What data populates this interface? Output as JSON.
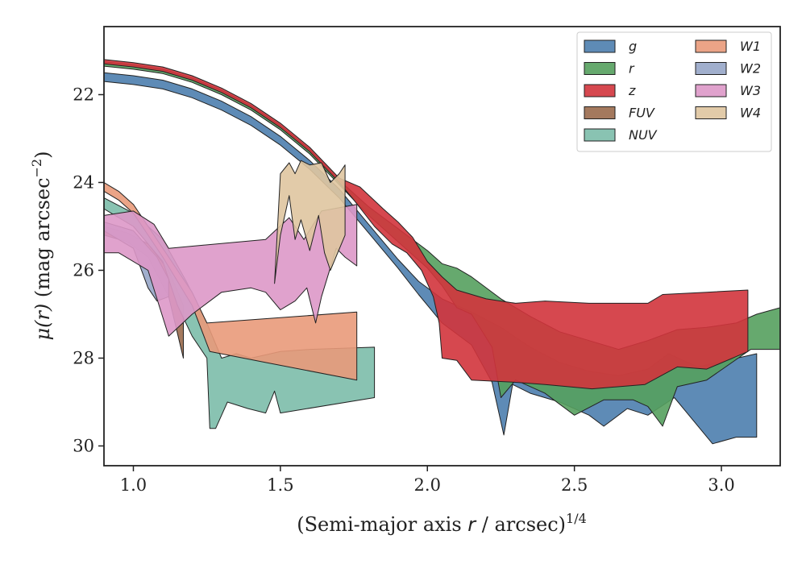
{
  "chart_data": {
    "type": "area",
    "title": "",
    "xlabel": "(Semi-major axis r / arcsec)^{1/4}",
    "xlabel_parts": {
      "prefix": "(Semi-major axis ",
      "var": "r",
      "suffix": " / arcsec)",
      "sup": "1/4"
    },
    "ylabel": "μ(r) (mag arcsec^{−2})",
    "ylabel_parts": {
      "var": "μ(r)",
      "prefix": " (mag arcsec",
      "sup": "−2",
      "suffix": ")"
    },
    "xlim": [
      0.9,
      3.2
    ],
    "ylim": [
      30.45,
      20.45
    ],
    "y_inverted": true,
    "xticks": [
      1.0,
      1.5,
      2.0,
      2.5,
      3.0
    ],
    "xtick_labels": [
      "1.0",
      "1.5",
      "2.0",
      "2.5",
      "3.0"
    ],
    "yticks": [
      22,
      24,
      26,
      28,
      30
    ],
    "ytick_labels": [
      "22",
      "24",
      "26",
      "28",
      "30"
    ],
    "grid": false,
    "legend": {
      "placement": "top-right",
      "columns": 2
    },
    "series": [
      {
        "name": "g",
        "color": "#4c7eae",
        "upper": [
          [
            0.9,
            21.5
          ],
          [
            1.0,
            21.57
          ],
          [
            1.1,
            21.67
          ],
          [
            1.2,
            21.87
          ],
          [
            1.3,
            22.15
          ],
          [
            1.4,
            22.5
          ],
          [
            1.5,
            22.95
          ],
          [
            1.6,
            23.5
          ],
          [
            1.7,
            24.15
          ],
          [
            1.8,
            24.95
          ],
          [
            1.9,
            25.75
          ],
          [
            1.97,
            26.25
          ],
          [
            2.05,
            26.65
          ],
          [
            2.15,
            26.95
          ],
          [
            2.25,
            27.3
          ],
          [
            2.35,
            27.75
          ],
          [
            2.45,
            28.1
          ],
          [
            2.55,
            28.3
          ],
          [
            2.65,
            28.4
          ],
          [
            2.75,
            28.25
          ],
          [
            2.82,
            27.9
          ],
          [
            2.92,
            28.2
          ],
          [
            3.12,
            27.9
          ]
        ],
        "lower": [
          [
            0.9,
            21.7
          ],
          [
            1.0,
            21.77
          ],
          [
            1.1,
            21.87
          ],
          [
            1.2,
            22.07
          ],
          [
            1.3,
            22.35
          ],
          [
            1.4,
            22.7
          ],
          [
            1.5,
            23.15
          ],
          [
            1.6,
            23.7
          ],
          [
            1.7,
            24.35
          ],
          [
            1.8,
            25.15
          ],
          [
            1.9,
            25.95
          ],
          [
            1.97,
            26.55
          ],
          [
            2.05,
            27.2
          ],
          [
            2.15,
            27.7
          ],
          [
            2.22,
            28.55
          ],
          [
            2.26,
            29.75
          ],
          [
            2.29,
            28.6
          ],
          [
            2.35,
            28.8
          ],
          [
            2.45,
            29.0
          ],
          [
            2.55,
            29.3
          ],
          [
            2.6,
            29.55
          ],
          [
            2.68,
            29.15
          ],
          [
            2.75,
            29.3
          ],
          [
            2.84,
            28.9
          ],
          [
            2.97,
            29.95
          ],
          [
            3.05,
            29.8
          ],
          [
            3.12,
            29.8
          ]
        ]
      },
      {
        "name": "r",
        "color": "#55a05e",
        "upper": [
          [
            0.9,
            21.25
          ],
          [
            1.0,
            21.32
          ],
          [
            1.1,
            21.42
          ],
          [
            1.2,
            21.62
          ],
          [
            1.3,
            21.9
          ],
          [
            1.4,
            22.25
          ],
          [
            1.5,
            22.7
          ],
          [
            1.6,
            23.25
          ],
          [
            1.7,
            23.95
          ],
          [
            1.8,
            24.55
          ],
          [
            1.9,
            25.05
          ],
          [
            2.0,
            25.55
          ],
          [
            2.05,
            25.85
          ],
          [
            2.1,
            25.95
          ],
          [
            2.15,
            26.15
          ],
          [
            2.25,
            26.65
          ],
          [
            2.35,
            27.05
          ],
          [
            2.45,
            27.4
          ],
          [
            2.55,
            27.6
          ],
          [
            2.65,
            27.8
          ],
          [
            2.75,
            27.6
          ],
          [
            2.85,
            27.35
          ],
          [
            2.95,
            27.3
          ],
          [
            3.05,
            27.2
          ],
          [
            3.12,
            27.0
          ],
          [
            3.2,
            26.85
          ]
        ],
        "lower": [
          [
            0.9,
            21.35
          ],
          [
            1.0,
            21.42
          ],
          [
            1.1,
            21.52
          ],
          [
            1.2,
            21.72
          ],
          [
            1.3,
            22.0
          ],
          [
            1.4,
            22.35
          ],
          [
            1.5,
            22.8
          ],
          [
            1.6,
            23.35
          ],
          [
            1.7,
            24.05
          ],
          [
            1.8,
            24.75
          ],
          [
            1.9,
            25.35
          ],
          [
            2.0,
            25.95
          ],
          [
            2.05,
            26.35
          ],
          [
            2.1,
            26.85
          ],
          [
            2.15,
            27.0
          ],
          [
            2.22,
            27.75
          ],
          [
            2.25,
            28.9
          ],
          [
            2.3,
            28.5
          ],
          [
            2.4,
            28.8
          ],
          [
            2.45,
            29.05
          ],
          [
            2.5,
            29.3
          ],
          [
            2.6,
            28.95
          ],
          [
            2.7,
            28.95
          ],
          [
            2.75,
            29.1
          ],
          [
            2.8,
            29.55
          ],
          [
            2.85,
            28.65
          ],
          [
            2.95,
            28.5
          ],
          [
            3.1,
            27.8
          ],
          [
            3.2,
            27.8
          ]
        ]
      },
      {
        "name": "z",
        "color": "#d1343c",
        "upper": [
          [
            0.9,
            21.2
          ],
          [
            1.0,
            21.27
          ],
          [
            1.1,
            21.37
          ],
          [
            1.2,
            21.57
          ],
          [
            1.3,
            21.85
          ],
          [
            1.4,
            22.2
          ],
          [
            1.5,
            22.65
          ],
          [
            1.6,
            23.2
          ],
          [
            1.7,
            23.9
          ],
          [
            1.77,
            24.1
          ],
          [
            1.85,
            24.6
          ],
          [
            1.9,
            24.9
          ],
          [
            1.95,
            25.25
          ],
          [
            2.0,
            25.8
          ],
          [
            2.05,
            26.15
          ],
          [
            2.1,
            26.45
          ],
          [
            2.2,
            26.65
          ],
          [
            2.3,
            26.75
          ],
          [
            2.4,
            26.7
          ],
          [
            2.55,
            26.75
          ],
          [
            2.75,
            26.75
          ],
          [
            2.8,
            26.55
          ],
          [
            2.95,
            26.5
          ],
          [
            3.09,
            26.45
          ]
        ],
        "lower": [
          [
            0.9,
            21.3
          ],
          [
            1.0,
            21.37
          ],
          [
            1.1,
            21.47
          ],
          [
            1.2,
            21.67
          ],
          [
            1.3,
            21.95
          ],
          [
            1.4,
            22.3
          ],
          [
            1.5,
            22.75
          ],
          [
            1.6,
            23.3
          ],
          [
            1.7,
            24.0
          ],
          [
            1.75,
            24.4
          ],
          [
            1.82,
            25.0
          ],
          [
            1.88,
            25.4
          ],
          [
            1.93,
            25.6
          ],
          [
            1.98,
            26.0
          ],
          [
            2.02,
            26.6
          ],
          [
            2.04,
            27.2
          ],
          [
            2.05,
            28.0
          ],
          [
            2.1,
            28.05
          ],
          [
            2.15,
            28.5
          ],
          [
            2.3,
            28.55
          ],
          [
            2.4,
            28.6
          ],
          [
            2.56,
            28.7
          ],
          [
            2.74,
            28.6
          ],
          [
            2.85,
            28.2
          ],
          [
            2.95,
            28.25
          ],
          [
            3.09,
            27.85
          ]
        ]
      },
      {
        "name": "FUV",
        "color": "#9a6a4c",
        "upper": [
          [
            0.9,
            25.0
          ],
          [
            0.98,
            25.15
          ],
          [
            1.05,
            25.4
          ],
          [
            1.12,
            26.0
          ],
          [
            1.17,
            26.8
          ]
        ],
        "lower": [
          [
            0.9,
            25.2
          ],
          [
            0.98,
            25.35
          ],
          [
            1.05,
            25.7
          ],
          [
            1.12,
            26.6
          ],
          [
            1.17,
            28.0
          ]
        ]
      },
      {
        "name": "NUV",
        "color": "#7cbdaa",
        "upper": [
          [
            0.9,
            24.35
          ],
          [
            1.0,
            24.7
          ],
          [
            1.1,
            25.3
          ],
          [
            1.18,
            26.25
          ],
          [
            1.25,
            27.2
          ],
          [
            1.3,
            28.0
          ],
          [
            1.35,
            27.9
          ],
          [
            1.4,
            28.0
          ],
          [
            1.5,
            27.85
          ],
          [
            1.6,
            27.8
          ],
          [
            1.82,
            27.75
          ]
        ],
        "lower": [
          [
            0.9,
            24.6
          ],
          [
            1.0,
            25.0
          ],
          [
            1.1,
            25.8
          ],
          [
            1.15,
            26.8
          ],
          [
            1.2,
            27.5
          ],
          [
            1.25,
            28.0
          ],
          [
            1.26,
            29.6
          ],
          [
            1.28,
            29.6
          ],
          [
            1.32,
            29.0
          ],
          [
            1.39,
            29.15
          ],
          [
            1.45,
            29.25
          ],
          [
            1.48,
            28.75
          ],
          [
            1.5,
            29.25
          ],
          [
            1.82,
            28.9
          ]
        ]
      },
      {
        "name": "W1",
        "color": "#e99a7a",
        "upper": [
          [
            0.9,
            24.0
          ],
          [
            0.95,
            24.2
          ],
          [
            1.0,
            24.5
          ],
          [
            1.1,
            25.5
          ],
          [
            1.2,
            26.5
          ],
          [
            1.25,
            27.2
          ],
          [
            1.76,
            26.95
          ]
        ],
        "lower": [
          [
            0.9,
            24.2
          ],
          [
            0.95,
            24.4
          ],
          [
            1.0,
            24.7
          ],
          [
            1.1,
            25.7
          ],
          [
            1.2,
            26.8
          ],
          [
            1.26,
            27.85
          ],
          [
            1.45,
            28.1
          ],
          [
            1.76,
            28.5
          ]
        ]
      },
      {
        "name": "W2",
        "color": "#97a6c8",
        "upper": [
          [
            0.9,
            24.9
          ],
          [
            1.0,
            25.1
          ],
          [
            1.08,
            25.7
          ],
          [
            1.12,
            26.2
          ]
        ],
        "lower": [
          [
            0.9,
            25.1
          ],
          [
            1.0,
            25.5
          ],
          [
            1.05,
            26.4
          ],
          [
            1.08,
            26.7
          ],
          [
            1.12,
            26.6
          ]
        ]
      },
      {
        "name": "W3",
        "color": "#dd98c8",
        "upper": [
          [
            0.9,
            24.75
          ],
          [
            1.0,
            24.65
          ],
          [
            1.07,
            24.95
          ],
          [
            1.12,
            25.5
          ],
          [
            1.45,
            25.3
          ],
          [
            1.53,
            24.8
          ],
          [
            1.58,
            25.3
          ],
          [
            1.64,
            24.65
          ],
          [
            1.76,
            24.5
          ]
        ],
        "lower": [
          [
            0.9,
            25.6
          ],
          [
            0.95,
            25.6
          ],
          [
            1.05,
            26.0
          ],
          [
            1.12,
            27.5
          ],
          [
            1.2,
            27.0
          ],
          [
            1.3,
            26.5
          ],
          [
            1.4,
            26.4
          ],
          [
            1.45,
            26.5
          ],
          [
            1.5,
            26.9
          ],
          [
            1.55,
            26.7
          ],
          [
            1.59,
            26.4
          ],
          [
            1.62,
            27.2
          ],
          [
            1.64,
            26.6
          ],
          [
            1.69,
            25.5
          ],
          [
            1.72,
            25.7
          ],
          [
            1.76,
            25.9
          ]
        ]
      },
      {
        "name": "W4",
        "color": "#dfc5a0",
        "upper": [
          [
            1.48,
            26.3
          ],
          [
            1.5,
            23.8
          ],
          [
            1.53,
            23.55
          ],
          [
            1.55,
            23.8
          ],
          [
            1.57,
            23.5
          ],
          [
            1.6,
            23.6
          ],
          [
            1.64,
            23.55
          ],
          [
            1.67,
            24.0
          ],
          [
            1.7,
            23.8
          ],
          [
            1.72,
            23.6
          ]
        ],
        "lower": [
          [
            1.48,
            26.3
          ],
          [
            1.5,
            25.2
          ],
          [
            1.53,
            24.3
          ],
          [
            1.55,
            25.3
          ],
          [
            1.57,
            24.85
          ],
          [
            1.6,
            25.55
          ],
          [
            1.63,
            24.75
          ],
          [
            1.65,
            25.6
          ],
          [
            1.67,
            26.0
          ],
          [
            1.72,
            25.2
          ]
        ]
      }
    ]
  }
}
